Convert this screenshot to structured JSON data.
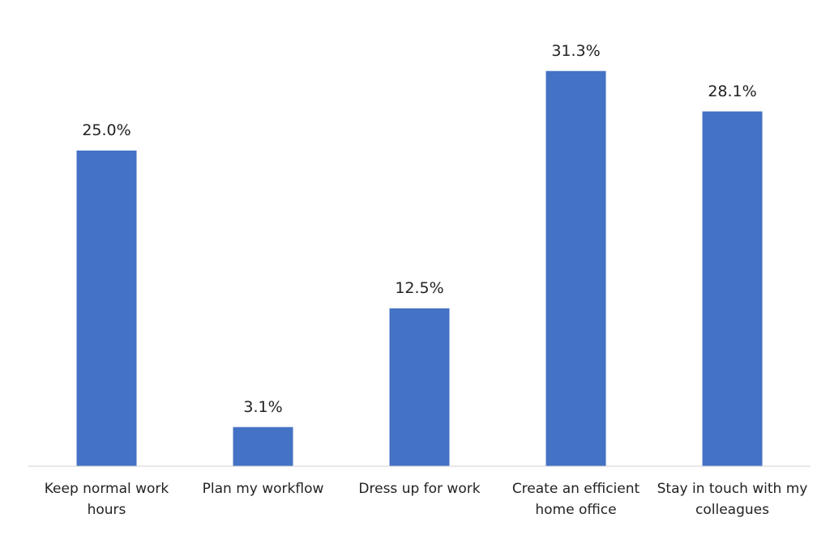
{
  "chart_data": {
    "type": "bar",
    "categories": [
      "Keep normal work hours",
      "Plan my workflow",
      "Dress up for work",
      "Create an efficient home office",
      "Stay in touch with my colleagues"
    ],
    "values": [
      25.0,
      3.1,
      12.5,
      31.3,
      28.1
    ],
    "value_labels": [
      "25.0%",
      "3.1%",
      "12.5%",
      "31.3%",
      "28.1%"
    ],
    "color": "#4472c4",
    "ylim": [
      0,
      35
    ]
  }
}
